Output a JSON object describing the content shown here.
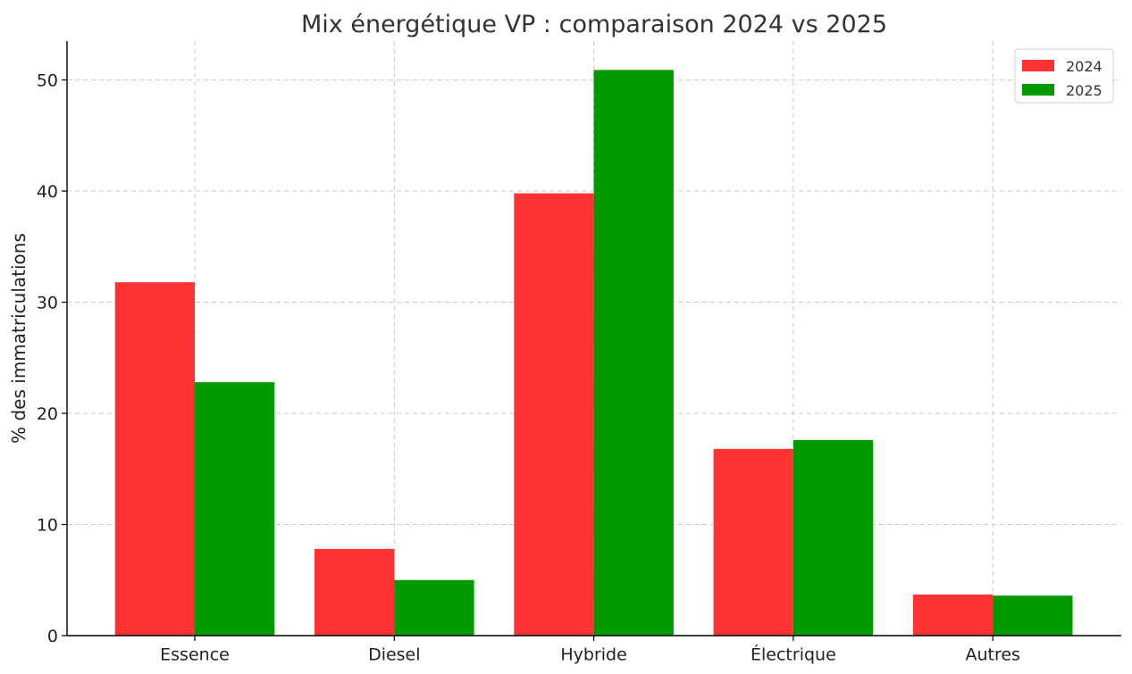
{
  "chart_data": {
    "type": "bar",
    "title": "Mix énergétique VP : comparaison 2024 vs 2025",
    "xlabel": "",
    "ylabel": "% des immatriculations",
    "categories": [
      "Essence",
      "Diesel",
      "Hybride",
      "Électrique",
      "Autres"
    ],
    "series": [
      {
        "name": "2024",
        "color": "#ff3333",
        "values": [
          31.8,
          7.8,
          39.8,
          16.8,
          3.7
        ]
      },
      {
        "name": "2025",
        "color": "#009900",
        "values": [
          22.8,
          5.0,
          50.9,
          17.6,
          3.6
        ]
      }
    ],
    "ylim": [
      0,
      53.5
    ],
    "yticks": [
      0,
      10,
      20,
      30,
      40,
      50
    ],
    "grid": true,
    "legend": "top-right"
  }
}
